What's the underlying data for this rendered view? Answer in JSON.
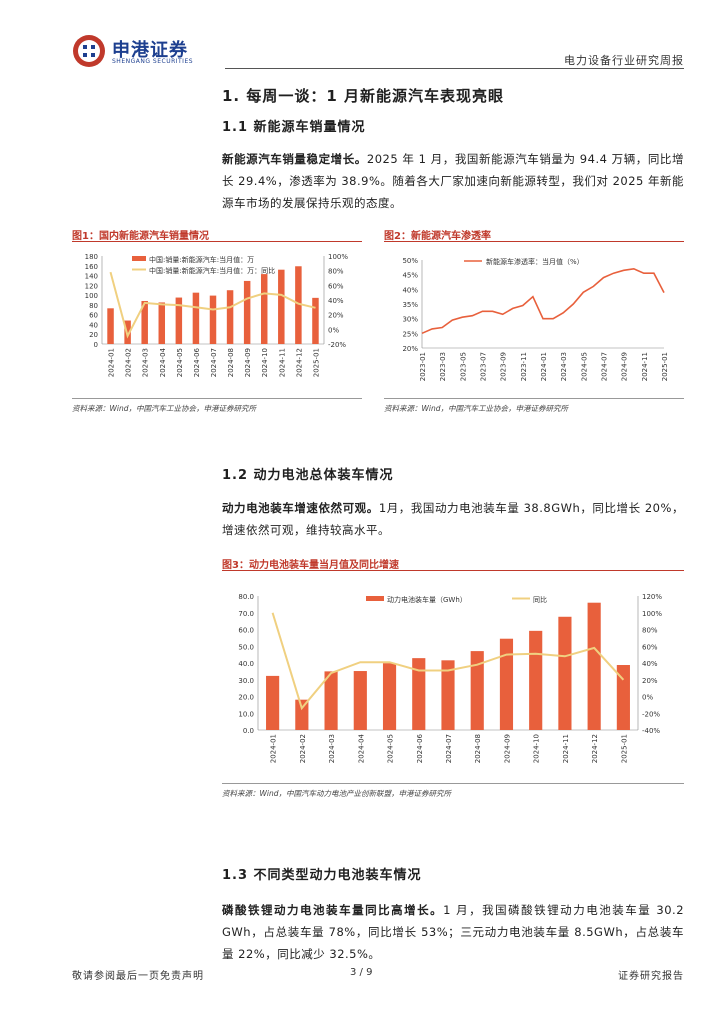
{
  "header": {
    "logo_cn": "申港证券",
    "logo_en": "SHENGANG SECURITIES",
    "report_type": "电力设备行业研究周报"
  },
  "section1": {
    "title": "1. 每周一谈：1 月新能源汽车表现亮眼"
  },
  "section1_1": {
    "title": "1.1 新能源车销量情况",
    "lead": "新能源汽车销量稳定增长。",
    "body": "2025 年 1 月，我国新能源汽车销量为 94.4 万辆，同比增长 29.4%，渗透率为 38.9%。随着各大厂家加速向新能源转型，我们对 2025 年新能源车市场的发展保持乐观的态度。"
  },
  "figure1": {
    "label": "图1：国内新能源汽车销量情况",
    "source": "资料来源：Wind，中国汽车工业协会，申港证券研究所"
  },
  "figure2": {
    "label": "图2：新能源汽车渗透率",
    "source": "资料来源：Wind，中国汽车工业协会，申港证券研究所"
  },
  "section1_2": {
    "title": "1.2 动力电池总体装车情况",
    "lead": "动力电池装车增速依然可观。",
    "body": "1月，我国动力电池装车量 38.8GWh，同比增长 20%，增速依然可观，维持较高水平。"
  },
  "figure3": {
    "label": "图3：动力电池装车量当月值及同比增速",
    "source": "资料来源：Wind，中国汽车动力电池产业创新联盟，申港证券研究所"
  },
  "section1_3": {
    "title": "1.3 不同类型动力电池装车情况",
    "lead": "磷酸铁锂动力电池装车量同比高增长。",
    "body": "1 月，我国磷酸铁锂动力电池装车量 30.2 GWh，占总装车量 78%，同比增长 53%；三元动力电池装车量 8.5GWh，占总装车量 22%，同比减少 32.5%。"
  },
  "footer": {
    "disclaimer": "敬请参阅最后一页免责声明",
    "page": "3 / 9",
    "doc_type": "证券研究报告"
  },
  "colors": {
    "bar": "#e8603c",
    "line": "#f0d080",
    "accent": "#c0392b",
    "brand": "#1d3f8f"
  },
  "chart_data": [
    {
      "type": "bar",
      "categories": [
        "2024-01",
        "2024-02",
        "2024-03",
        "2024-04",
        "2024-05",
        "2024-06",
        "2024-07",
        "2024-08",
        "2024-09",
        "2024-10",
        "2024-11",
        "2024-12",
        "2025-01"
      ],
      "series": [
        {
          "name": "中国:销量:新能源汽车:当月值：万",
          "kind": "bar",
          "axis": "left",
          "values": [
            73,
            48,
            88,
            85,
            95,
            105,
            99,
            110,
            129,
            143,
            152,
            159,
            94.4
          ]
        },
        {
          "name": "中国:销量:新能源汽车:当月值：万：同比",
          "kind": "line",
          "axis": "right",
          "values": [
            78,
            -9,
            36,
            34,
            33,
            30,
            27,
            30,
            42,
            49,
            47,
            35,
            29.4
          ]
        }
      ],
      "ylim_left": [
        0,
        180
      ],
      "yticks_left": [
        "0",
        "20",
        "40",
        "60",
        "80",
        "100",
        "120",
        "140",
        "160",
        "180"
      ],
      "ylim_right": [
        -20,
        100
      ],
      "yticks_right": [
        "-20%",
        "0%",
        "20%",
        "40%",
        "60%",
        "80%",
        "100%"
      ],
      "legend": "top-left"
    },
    {
      "type": "line",
      "x": [
        "2023-01",
        "2023-02",
        "2023-03",
        "2023-04",
        "2023-05",
        "2023-06",
        "2023-07",
        "2023-08",
        "2023-09",
        "2023-10",
        "2023-11",
        "2023-12",
        "2024-01",
        "2024-02",
        "2024-03",
        "2024-04",
        "2024-05",
        "2024-06",
        "2024-07",
        "2024-08",
        "2024-09",
        "2024-10",
        "2024-11",
        "2024-12",
        "2025-01"
      ],
      "xticks": [
        "2023-01",
        "2023-03",
        "2023-05",
        "2023-07",
        "2023-09",
        "2023-11",
        "2024-01",
        "2024-03",
        "2024-05",
        "2024-07",
        "2024-09",
        "2024-11",
        "2025-01"
      ],
      "series": [
        {
          "name": "新能源车渗透率：当月值（%）",
          "values": [
            25,
            26.5,
            27,
            29.5,
            30.5,
            31,
            32.5,
            32.5,
            31.5,
            33.5,
            34.5,
            37.5,
            30,
            30,
            32,
            35,
            39,
            41,
            44,
            45.5,
            46.5,
            47,
            45.5,
            45.5,
            38.9
          ]
        }
      ],
      "ylim": [
        20,
        50
      ],
      "yticks": [
        "20%",
        "25%",
        "30%",
        "35%",
        "40%",
        "45%",
        "50%"
      ],
      "legend": "top-left"
    },
    {
      "type": "bar",
      "categories": [
        "2024-01",
        "2024-02",
        "2024-03",
        "2024-04",
        "2024-05",
        "2024-06",
        "2024-07",
        "2024-08",
        "2024-09",
        "2024-10",
        "2024-11",
        "2024-12",
        "2025-01"
      ],
      "series": [
        {
          "name": "动力电池装车量（GWh）",
          "kind": "bar",
          "axis": "left",
          "values": [
            32.3,
            18.1,
            35,
            35.2,
            39.9,
            42.9,
            41.6,
            47.1,
            54.5,
            59.2,
            67.6,
            76,
            38.8
          ]
        },
        {
          "name": "同比",
          "kind": "line",
          "axis": "right",
          "values": [
            100,
            -14,
            28,
            41,
            41,
            31,
            31,
            38,
            50,
            51,
            48,
            58,
            20
          ]
        }
      ],
      "ylim_left": [
        0,
        80
      ],
      "yticks_left": [
        "0.0",
        "10.0",
        "20.0",
        "30.0",
        "40.0",
        "50.0",
        "60.0",
        "70.0",
        "80.0"
      ],
      "ylim_right": [
        -40,
        120
      ],
      "yticks_right": [
        "-40%",
        "-20%",
        "0%",
        "20%",
        "40%",
        "60%",
        "80%",
        "100%",
        "120%"
      ],
      "legend": "top-center"
    }
  ]
}
